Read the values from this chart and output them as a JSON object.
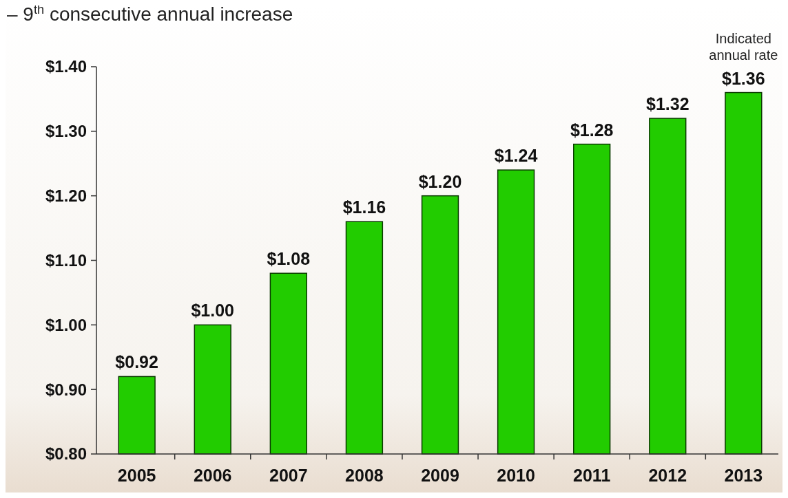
{
  "chart_data": {
    "type": "bar",
    "title": "– 9$^{th}$ consecutive annual increase",
    "categories": [
      "2005",
      "2006",
      "2007",
      "2008",
      "2009",
      "2010",
      "2011",
      "2012",
      "2013"
    ],
    "values": [
      0.92,
      1.0,
      1.08,
      1.16,
      1.2,
      1.24,
      1.28,
      1.32,
      1.36
    ],
    "value_labels": [
      "$0.92",
      "$1.00",
      "$1.08",
      "$1.16",
      "$1.20",
      "$1.24",
      "$1.28",
      "$1.32",
      "$1.36"
    ],
    "color": "#22cc00",
    "ylim": [
      0.8,
      1.4
    ],
    "yticks": [
      {
        "value": 0.8,
        "label": "$0.80"
      },
      {
        "value": 0.9,
        "label": "$0.90"
      },
      {
        "value": 1.0,
        "label": "$1.00"
      },
      {
        "value": 1.1,
        "label": "$1.10"
      },
      {
        "value": 1.2,
        "label": "$1.20"
      },
      {
        "value": 1.3,
        "label": "$1.30"
      },
      {
        "value": 1.4,
        "label": "$1.40"
      }
    ],
    "annotations": [
      {
        "text": "Indicated annual rate",
        "x": "2013",
        "y": 1.36
      }
    ],
    "grid": false
  }
}
